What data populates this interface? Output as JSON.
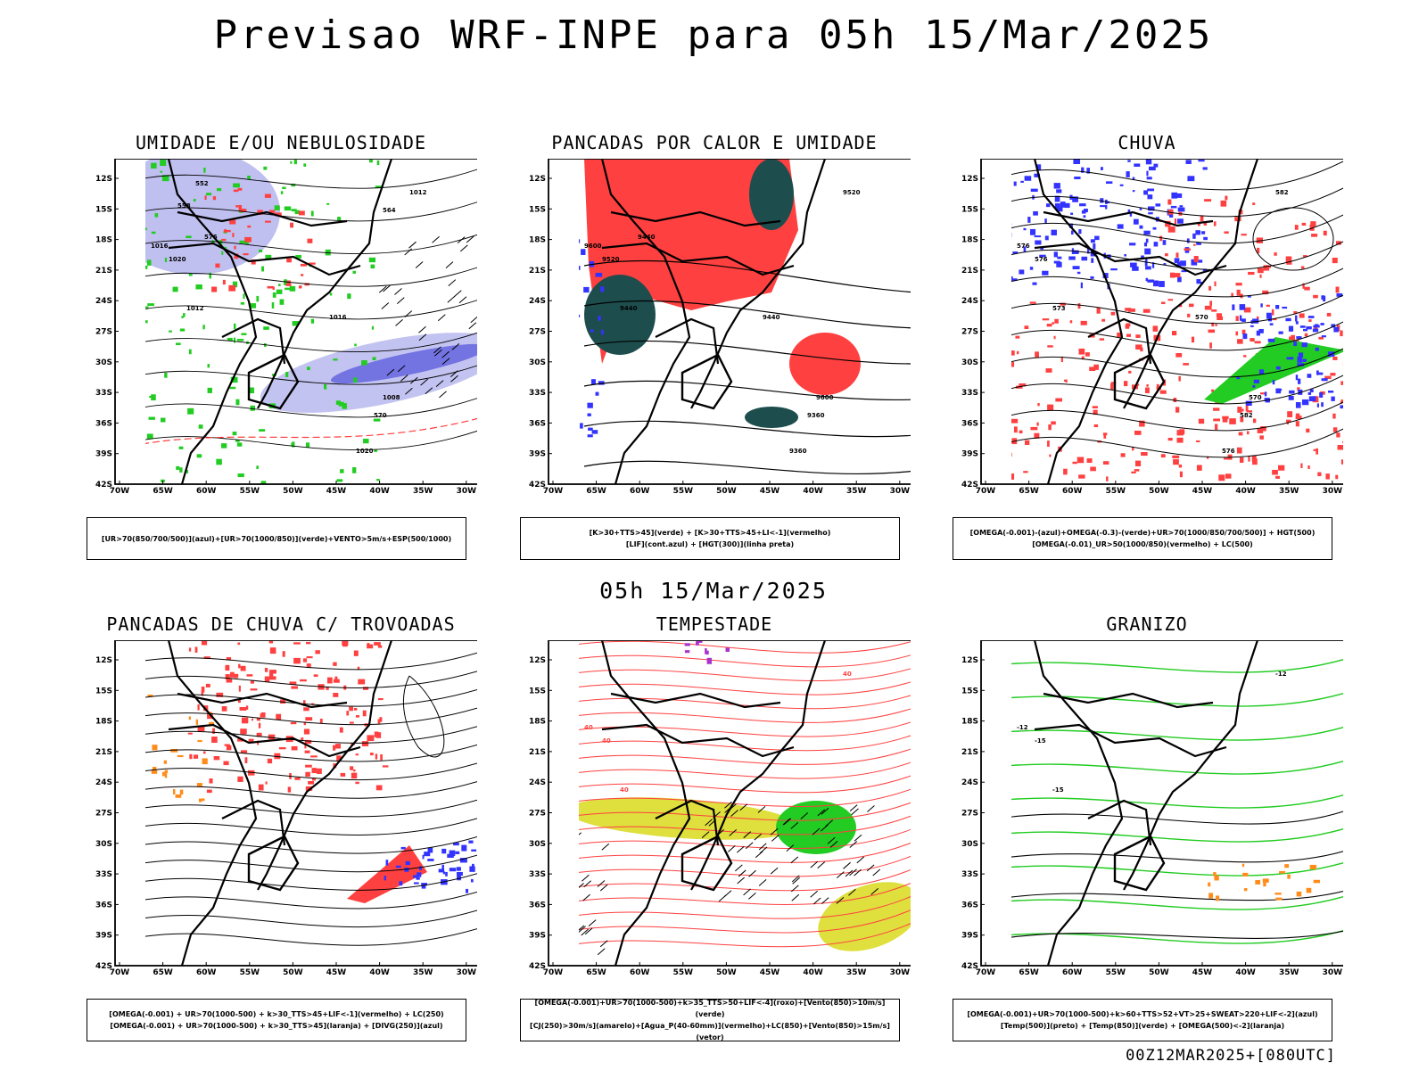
{
  "header": {
    "title": "Previsao WRF-INPE  para 05h 15/Mar/2025"
  },
  "subtitle": "05h 15/Mar/2025",
  "footer": "00Z12MAR2025+[080UTC]",
  "axes": {
    "lat_labels": [
      "12S",
      "15S",
      "18S",
      "21S",
      "24S",
      "27S",
      "30S",
      "33S",
      "36S",
      "39S",
      "42S"
    ],
    "lon_labels": [
      "70W",
      "65W",
      "60W",
      "55W",
      "50W",
      "45W",
      "40W",
      "35W",
      "30W"
    ]
  },
  "panels": [
    {
      "title": "UMIDADE E/OU NEBULOSIDADE",
      "legend": [
        "[UR>70(850/700/500)](azul)+[UR>70(1000/850)](verde)+VENTO>5m/s+ESP(500/1000)"
      ],
      "contour_labels": [
        "1012",
        "1016",
        "1020",
        "1012",
        "1008",
        "1016",
        "1020",
        "570",
        "576",
        "552",
        "558",
        "564"
      ]
    },
    {
      "title": "PANCADAS POR CALOR E UMIDADE",
      "legend": [
        "[K>30+TTS>45](verde) + [K>30+TTS>45+LI<-1](vermelho)",
        "[LIF](cont.azul) + [HGT(300)](linha preta)"
      ],
      "contour_labels": [
        "9520",
        "9600",
        "9520",
        "9440",
        "9600",
        "9440",
        "9360",
        "9360",
        "9440"
      ]
    },
    {
      "title": "CHUVA",
      "legend": [
        "[OMEGA(-0.001)-(azul)+OMEGA(-0.3)-(verde)+UR>70(1000/850/700/500)] + HGT(500)",
        "[OMEGA(-0.01)_UR>50(1000/850)(vermelho) + LC(500)"
      ],
      "contour_labels": [
        "582",
        "576",
        "576",
        "573",
        "570",
        "570",
        "576",
        "582"
      ]
    },
    {
      "title": "PANCADAS DE CHUVA C/ TROVOADAS",
      "legend": [
        "[OMEGA(-0.001) + UR>70(1000-500) + k>30_TTS>45+LIF<-1](vermelho) + LC(250)",
        "[OMEGA(-0.001) + UR>70(1000-500) + k>30_TTS>45](laranja) + [DIVG(250)](azul)"
      ],
      "contour_labels": []
    },
    {
      "title": "TEMPESTADE",
      "legend": [
        "[OMEGA(-0.001)+UR>70(1000-500)+k>35_TTS>50+LIF<-4](roxo)+[Vento(850)>10m/s](verde)",
        "[CJ(250)>30m/s](amarelo)+[Agua_P(40-60mm)](vermelho)+LC(850)+[Vento(850)>15m/s](vetor)"
      ],
      "contour_labels": [
        "40",
        "40",
        "40",
        "40"
      ]
    },
    {
      "title": "GRANIZO",
      "legend": [
        "[OMEGA(-0.001)+UR>70(1000-500)+k>60+TTS>52+VT>25+SWEAT>220+LIF<-2](azul)",
        "[Temp(500)](preto) + [Temp(850)](verde) + [OMEGA(500)<-2](laranja)"
      ],
      "contour_labels": [
        "-12",
        "-12",
        "-15",
        "-15"
      ]
    }
  ],
  "colors": {
    "blue": "#3333ff",
    "green": "#22cc22",
    "red": "#ff4040",
    "dark_teal": "#1e4d4d",
    "yellow": "#dddd33",
    "orange": "#ff8c1a",
    "purple": "#aa33cc",
    "lavender": "#b8b8ee"
  }
}
